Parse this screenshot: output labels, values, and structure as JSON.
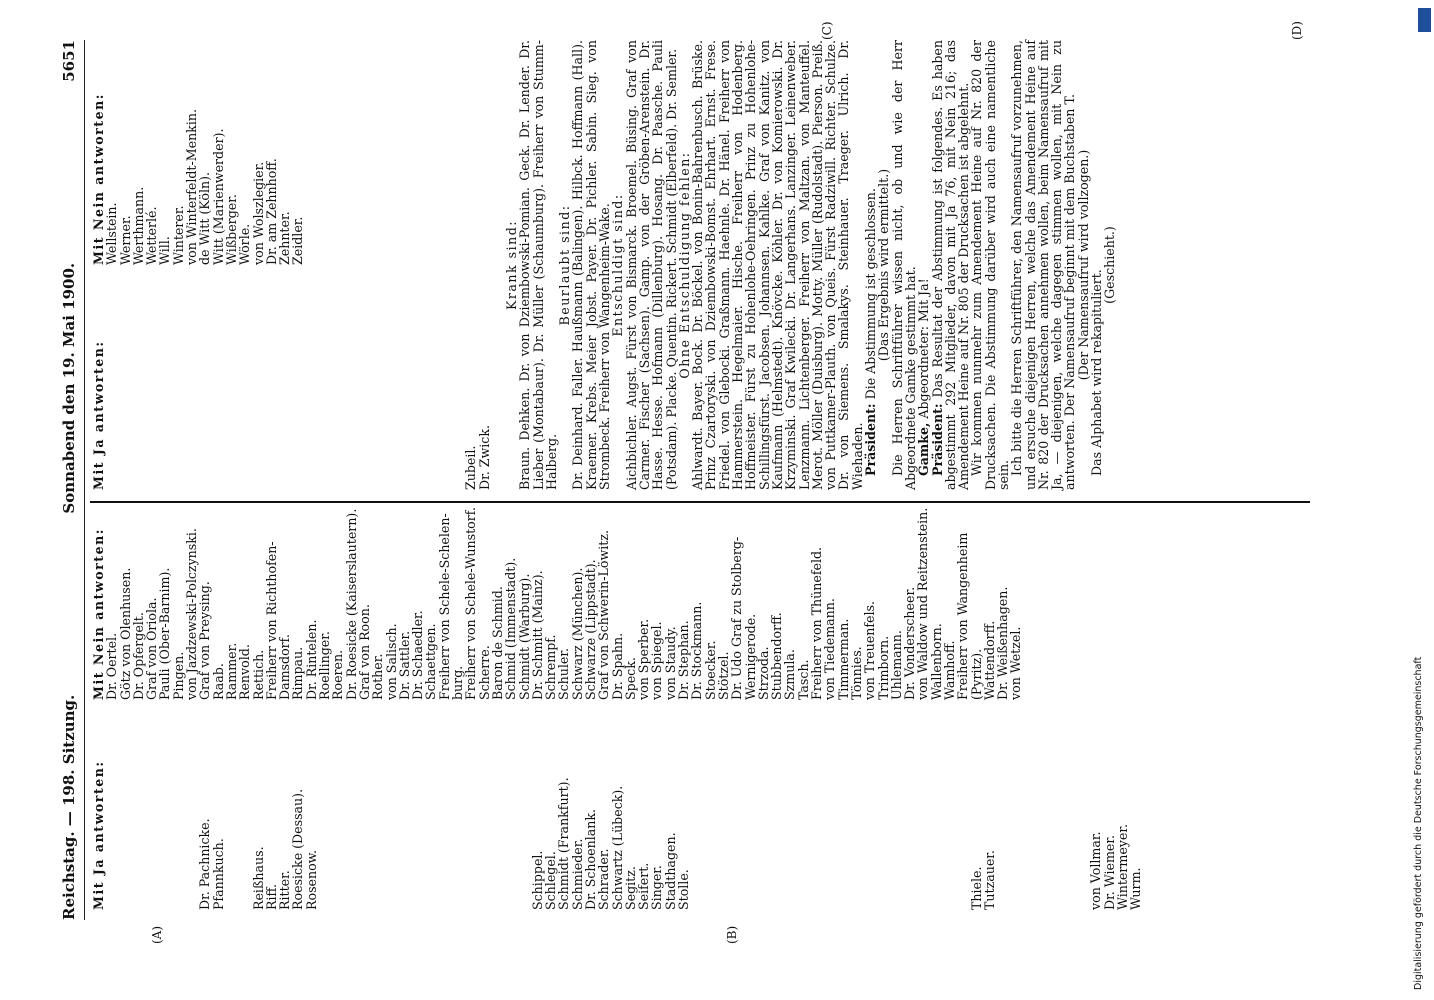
{
  "header": {
    "left": "Reichstag. — 198. Sitzung.",
    "center": "Sonnabend den 19. Mai 1900.",
    "right": "5651"
  },
  "markers": {
    "A": "(A)",
    "B": "(B)",
    "C": "(C)",
    "D": "(D)"
  },
  "sidenote": "Digitalisierung gefördert durch die Deutsche Forschungsgemeinschaft",
  "dfg_logo": "DFG",
  "col1": {
    "heading": "Mit Ja antworten:",
    "lines": [
      "",
      "",
      "",
      "",
      "",
      "",
      "",
      "Dr. Pachnicke.",
      "Pfannkuch.",
      "",
      "",
      "Reißhaus.",
      "Riff.",
      "Ritter.",
      "Roesicke (Dessau).",
      "Rosenow.",
      "",
      "",
      "",
      "",
      "",
      "",
      "",
      "",
      "",
      "",
      "",
      "",
      "",
      "",
      "",
      "",
      "Schippel.",
      "Schlegel.",
      "Schmidt (Frankfurt).",
      "Schmieder.",
      "Dr. Schoenlank.",
      "Schrader.",
      "Schwartz (Lübeck).",
      "Segitz.",
      "Seifert.",
      "Singer.",
      "Stadthagen.",
      "Stolle.",
      "",
      "",
      "",
      "",
      "",
      "",
      "",
      "",
      "",
      "",
      "",
      "",
      "",
      "",
      "",
      "",
      "",
      "",
      "",
      "",
      "",
      "Thiele.",
      "Tutzauer.",
      "",
      "",
      "",
      "",
      "",
      "",
      "",
      "von Vollmar.",
      "Dr. Wiemer.",
      "Wintermeyer.",
      "Wurm."
    ]
  },
  "col2": {
    "heading": "Mit Nein antworten:",
    "lines": [
      "Dr. Oertel.",
      "Götz von Olenhusen.",
      "Dr. Opfergelt.",
      "Graf von Oriola.",
      "Pauli (Ober-Barnim).",
      "Pingen.",
      "von Jazdzewski-Polczynski.",
      "Graf von Preysing.",
      "Raab.",
      "Rammer.",
      "Renvold.",
      "Rettich.",
      "Freiherr von Richthofen-",
      "Damsdorf.",
      "Rimpau.",
      "Dr. Rintelen.",
      "Roellinger.",
      "Roeren.",
      "Dr. Roesicke (Kaiserslautern).",
      "Graf von Roon.",
      "Rother.",
      "von Salisch.",
      "Dr. Sattler.",
      "Dr. Schaedler.",
      "Schaettgen.",
      "Freiherr von Schele-Schelen-",
      "burg.",
      "Freiherr von Schele-Wunstorf.",
      "Scherre.",
      "Baron de Schmid.",
      "Schmid (Immenstadt).",
      "Schmidt (Warburg).",
      "Dr. Schmitt (Mainz).",
      "Schrempf.",
      "Schuler.",
      "Schwarz (München).",
      "Schwarze (Lippstadt).",
      "Graf von Schwerin-Löwitz.",
      "Dr. Spahn.",
      "Speck.",
      "von Sperber.",
      "von Spiegel.",
      "von Staudy.",
      "Dr. Stephan.",
      "Dr. Stockmann.",
      "Stoecker.",
      "Stötzel.",
      "Dr. Udo Graf zu Stolberg-",
      "Wernigerode.",
      "Strzoda.",
      "Stubbendorff.",
      "Szmula.",
      "Tasch.",
      "Freiherr von Thünefeld.",
      "von Tiedemann.",
      "Timmerman.",
      "Tönnies.",
      "von Treuenfels.",
      "Trimborn.",
      "Uhlemann.",
      "Dr. Vonderscheer.",
      "von Waldow und Reitzenstein.",
      "Wallenborn.",
      "Wamhoff.",
      "Freiherr von Wangenheim",
      "(Pyritz).",
      "Wattendorff.",
      "Dr. Weißenhagen.",
      "von Wetzel."
    ]
  },
  "col3": {
    "heading": "Mit Ja antworten:",
    "lines": [
      "",
      "",
      "",
      "",
      "",
      "",
      "",
      "",
      "",
      "",
      "",
      "",
      "",
      "",
      "",
      "",
      "",
      "",
      "",
      "",
      "",
      "",
      "",
      "",
      "",
      "",
      "",
      "Zubeil.",
      "Dr. Zwick."
    ]
  },
  "col4": {
    "heading": "Mit Nein antworten:",
    "lines": [
      "Wellstein.",
      "Werner.",
      "Werthmann.",
      "Wetterlé.",
      "Will.",
      "Winterer.",
      "von Winterfeldt-Menkin.",
      "de Witt (Köln).",
      "Witt (Marienwerder).",
      "Wißberger.",
      "Wörle.",
      "von Wolszlegier.",
      "Dr. am Zehnhoff.",
      "Zehnter.",
      "Zeidler."
    ]
  },
  "krank": {
    "heading": "Krank sind:",
    "text": "Braun. Dehken. Dr. von Dziembowski-Pomian. Geck. Dr. Lender. Dr. Lieber (Montabaur). Dr. Müller (Schaumburg). Freiherr von Stumm-Halberg."
  },
  "beurlaubt": {
    "heading": "Beurlaubt sind:",
    "text": "Dr. Deinhard. Faller. Haußmann (Balingen). Hilbck. Hoffmann (Hall). Kraemer. Krebs. Meier Jobst. Payer. Dr. Pichler. Sabin. Sieg. von Strombeck. Freiherr von Wangenheim-Wake."
  },
  "entschuldigt": {
    "heading": "Entschuldigt sind:",
    "text": "Aichbichler. Augst. Fürst von Bismarck. Broemel. Büsing. Graf von Carmer. Fischer (Sachsen). Gamp. von der Gröben-Arenstein. Dr. Hasse. Hesse. Hofmann (Dillenburg). Hosang. Dr. Paasche. Pauli (Potsdam). Placke. Quentin. Rickert. Schmidt (Elberfeld). Dr. Semler."
  },
  "ohne": {
    "heading": "Ohne Entschuldigung fehlen:",
    "text": "Ahlwardt. Bayer. Bock. Dr. Böckel. von Bonin-Bahrenbusch. Brüske. Prinz Czartoryski. von Dziembowski-Bomst. Ehrhart. Ernst. Frese. Friedel. von Glebocki. Graßmann. Haehnle. Dr. Hänel. Freiherr von Hammerstein. Hegelmaier. Hische. Freiherr von Hodenberg. Hoffmeister. Fürst zu Hohenlohe-Oehringen. Prinz zu Hohenlohe-Schillingsfürst. Jacobsen. Johannsen. Kahlke. Graf von Kanitz. von Kaufmann (Helmstedt). Knövcke. Köhler. Dr. von Komierowski. Dr. Krzyminski. Graf Kwilecki. Dr. Langerhans. Lanzinger. Leinenweber. Lenzmann. Lichtenberger. Freiherr von Maltzan. von Manteuffel. Merot. Möller (Duisburg). Motty. Müller (Rudolstadt). Pierson. Preiß. von Puttkamer-Plauth. von Queis. Fürst Radziwill. Richter. Schulze. Dr. von Siemens. Smalakys. Steinhauer. Traeger. Ulrich. Dr. Wiehaden."
  },
  "paras": [
    {
      "bold": "Präsident:",
      "text": " Die Abstimmung ist geschlossen."
    },
    {
      "bold": "",
      "text": "(Das Ergebnis wird ermittelt.)",
      "center": true
    },
    {
      "bold": "",
      "text": "Die Herren Schriftführer wissen nicht, ob und wie der Herr Abgeordnete Gamke gestimmt hat."
    },
    {
      "bold": "Gamke,",
      "text": " Abgeordneter: Mit Ja!"
    },
    {
      "bold": "Präsident:",
      "text": " Das Resultat der Abstimmung ist folgendes. Es haben abgestimmt 292 Mitglieder, davon mit Ja 76, mit Nein 216; das Amendement Heine auf Nr. 805 der Drucksachen ist abgelehnt."
    },
    {
      "bold": "",
      "text": "Wir kommen nunmehr zum Amendement Heine auf Nr. 820 der Drucksachen. Die Abstimmung darüber wird auch eine namentliche sein."
    },
    {
      "bold": "",
      "text": "Ich bitte die Herren Schriftführer, den Namensaufruf vorzunehmen, und ersuche diejenigen Herren, welche das Amendement Heine auf Nr. 820 der Drucksachen annehmen wollen, beim Namensaufruf mit Ja, — diejenigen, welche dagegen stimmen wollen, mit Nein zu antworten. Der Namensaufruf beginnt mit dem Buchstaben T."
    },
    {
      "bold": "",
      "text": "(Der Namensaufruf wird vollzogen.)",
      "center": true
    },
    {
      "bold": "",
      "text": "Das Alphabet wird rekapituliert."
    },
    {
      "bold": "",
      "text": "(Geschieht.)",
      "center": true
    }
  ]
}
